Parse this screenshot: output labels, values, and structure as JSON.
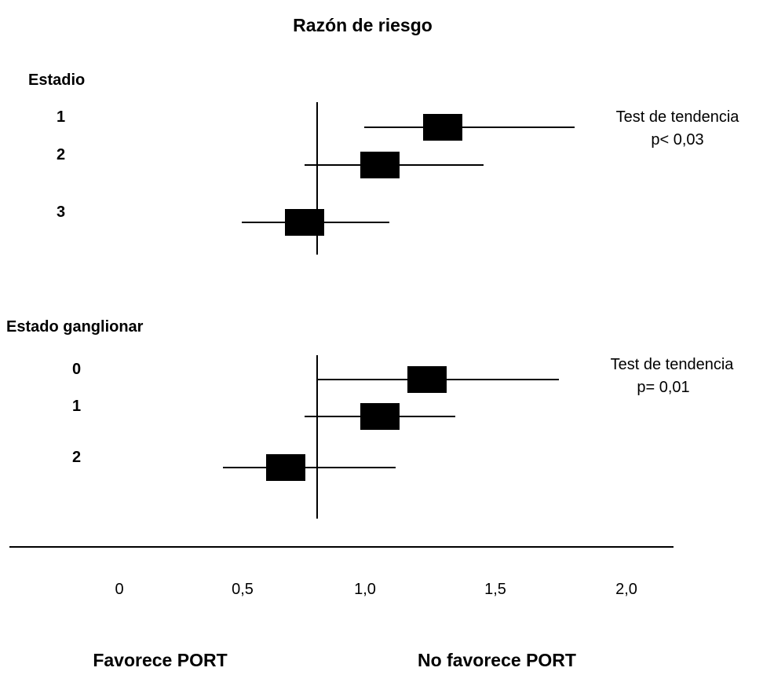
{
  "chart_data": {
    "type": "forest",
    "title": "Razón de riesgo",
    "x_ticks": [
      "0",
      "0,5",
      "1,0",
      "1,5",
      "2,0"
    ],
    "x_tick_values": [
      0,
      0.5,
      1.0,
      1.5,
      2.0
    ],
    "xlim": [
      0,
      2.0
    ],
    "reference_line": 0.8,
    "footer_left": "Favorece PORT",
    "footer_right": "No favorece PORT",
    "groups": [
      {
        "label": "Estadio",
        "annotation": [
          "Test de tendencia",
          "p< 0,03"
        ],
        "rows": [
          {
            "label": "1",
            "estimate": 1.2,
            "lower": 0.95,
            "upper": 1.62
          },
          {
            "label": "2",
            "estimate": 1.0,
            "lower": 0.76,
            "upper": 1.33
          },
          {
            "label": "3",
            "estimate": 0.76,
            "lower": 0.56,
            "upper": 1.03
          }
        ]
      },
      {
        "label": "Estado ganglionar",
        "annotation": [
          "Test de tendencia",
          "p= 0,01"
        ],
        "rows": [
          {
            "label": "0",
            "estimate": 1.15,
            "lower": 0.8,
            "upper": 1.57
          },
          {
            "label": "1",
            "estimate": 1.0,
            "lower": 0.76,
            "upper": 1.24
          },
          {
            "label": "2",
            "estimate": 0.7,
            "lower": 0.5,
            "upper": 1.05
          }
        ]
      }
    ]
  }
}
